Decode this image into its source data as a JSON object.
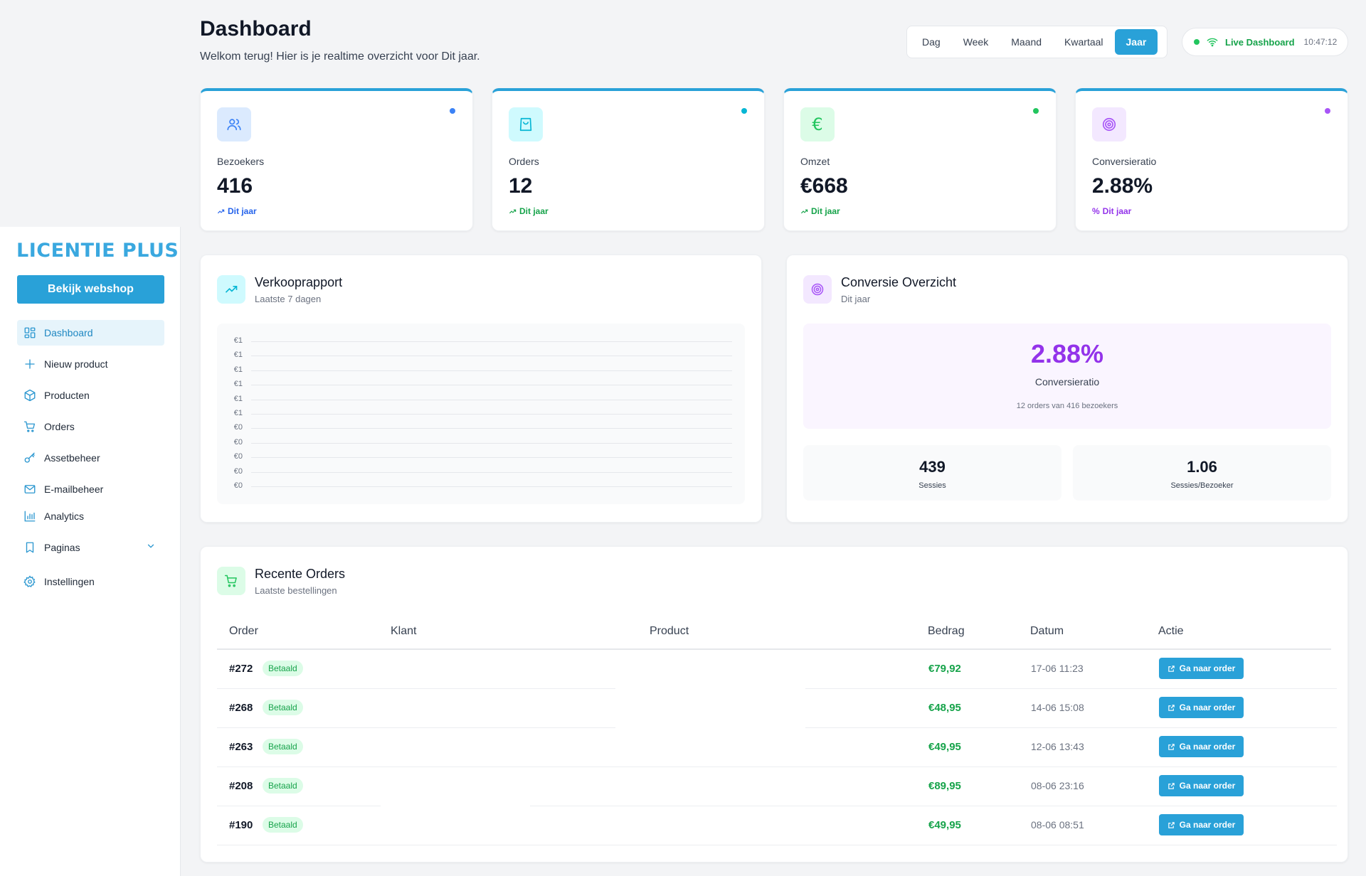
{
  "sidebar": {
    "logo": "LICENTIE PLUS",
    "shop_button": "Bekijk webshop",
    "items": [
      {
        "label": "Dashboard",
        "icon": "dashboard-icon"
      },
      {
        "label": "Nieuw product",
        "icon": "plus-icon"
      },
      {
        "label": "Producten",
        "icon": "box-icon"
      },
      {
        "label": "Orders",
        "icon": "cart-icon"
      },
      {
        "label": "Assetbeheer",
        "icon": "key-icon"
      },
      {
        "label": "E-mailbeheer",
        "icon": "mail-icon"
      },
      {
        "label": "Analytics",
        "icon": "bar-chart-icon"
      },
      {
        "label": "Paginas",
        "icon": "bookmark-icon"
      },
      {
        "label": "Instellingen",
        "icon": "gear-icon"
      }
    ]
  },
  "header": {
    "title": "Dashboard",
    "subtitle": "Welkom terug! Hier is je realtime overzicht voor Dit jaar.",
    "periods": [
      "Dag",
      "Week",
      "Maand",
      "Kwartaal",
      "Jaar"
    ],
    "active_period": "Jaar",
    "live_label": "Live Dashboard",
    "live_time": "10:47:12"
  },
  "stats": [
    {
      "label": "Bezoekers",
      "value": "416",
      "trend": "Dit jaar",
      "color": "#3b82f6",
      "bg": "#dbeafe",
      "icon": "users-icon"
    },
    {
      "label": "Orders",
      "value": "12",
      "trend": "Dit jaar",
      "color": "#06b6d4",
      "bg": "#cffafe",
      "icon": "shopping-bag-icon"
    },
    {
      "label": "Omzet",
      "value": "€668",
      "trend": "Dit jaar",
      "color": "#22c55e",
      "bg": "#dcfce7",
      "icon": "euro-icon"
    },
    {
      "label": "Conversieratio",
      "value": "2.88%",
      "trend": "Dit jaar",
      "color": "#a855f7",
      "bg": "#f3e8ff",
      "icon": "target-icon"
    }
  ],
  "sales_report": {
    "title": "Verkooprapport",
    "subtitle": "Laatste 7 dagen",
    "y_ticks": [
      "€1",
      "€1",
      "€1",
      "€1",
      "€1",
      "€1",
      "€0",
      "€0",
      "€0",
      "€0",
      "€0"
    ]
  },
  "conversion": {
    "title": "Conversie Overzicht",
    "subtitle": "Dit jaar",
    "rate": "2.88%",
    "rate_label": "Conversieratio",
    "note": "12 orders van 416 bezoekers",
    "sessions_value": "439",
    "sessions_label": "Sessies",
    "per_visitor_value": "1.06",
    "per_visitor_label": "Sessies/Bezoeker"
  },
  "orders": {
    "title": "Recente Orders",
    "subtitle": "Laatste bestellingen",
    "columns": [
      "Order",
      "Klant",
      "Product",
      "Bedrag",
      "Datum",
      "Actie"
    ],
    "status_label": "Betaald",
    "action_label": "Ga naar order",
    "rows": [
      {
        "order": "#272",
        "amount": "€79,92",
        "date": "17-06 11:23"
      },
      {
        "order": "#268",
        "amount": "€48,95",
        "date": "14-06 15:08"
      },
      {
        "order": "#263",
        "amount": "€49,95",
        "date": "12-06 13:43"
      },
      {
        "order": "#208",
        "amount": "€89,95",
        "date": "08-06 23:16"
      },
      {
        "order": "#190",
        "amount": "€49,95",
        "date": "08-06 08:51"
      }
    ]
  }
}
